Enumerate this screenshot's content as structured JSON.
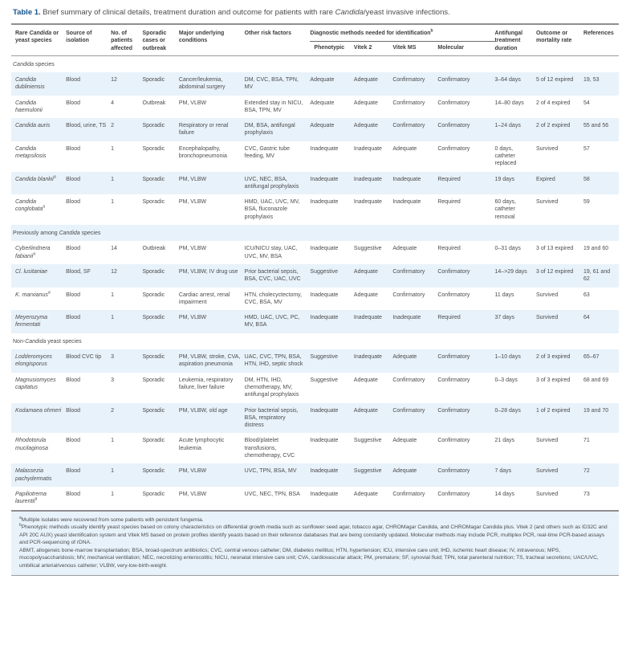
{
  "title": {
    "label": "Table 1.",
    "pre": " Brief summary of clinical details, treatment duration and outcome for patients with rare ",
    "italic": "Candida",
    "post": "/yeast invasive infections."
  },
  "colors": {
    "accent_blue": "#15538c",
    "stripe_blue": "#e8f2fa"
  },
  "table": {
    "head": {
      "species": {
        "pre": "Rare ",
        "italic": "Candida",
        "post": " or yeast species"
      },
      "source": "Source of isolation",
      "n": "No. of patients affected",
      "pattern": "Sporadic cases or outbreak",
      "conditions": "Major underlying conditions",
      "risks": "Other risk factors",
      "diag_group": {
        "text": "Diagnostic methods needed for identification",
        "sup": "b"
      },
      "diag_cols": [
        "Phenotypic",
        "Vitek 2",
        "Vitek MS",
        "Molecular"
      ],
      "duration": "Antifungal treatment duration",
      "outcome": "Outcome or mortality rate",
      "refs": "References"
    },
    "sections": [
      {
        "header": {
          "pre": "",
          "italic": "Candida",
          "post": " species"
        },
        "rows": [
          {
            "species": {
              "name": "Candida dubliniensis",
              "sup": ""
            },
            "source": "Blood",
            "n": "12",
            "pattern": "Sporadic",
            "conditions": "Cancer/leukemia, abdominal surgery",
            "risks": "DM, CVC, BSA, TPN, MV",
            "phenotypic": "Adequate",
            "vitek2": "Adequate",
            "vitekms": "Confirmatory",
            "molecular": "Confirmatory",
            "duration": "3–64 days",
            "outcome": "5 of 12 expired",
            "refs": "19, 53"
          },
          {
            "species": {
              "name": "Candida haemulonii",
              "sup": ""
            },
            "source": "Blood",
            "n": "4",
            "pattern": "Outbreak",
            "conditions": "PM, VLBW",
            "risks": "Extended stay in NICU, BSA, TPN, MV",
            "phenotypic": "Adequate",
            "vitek2": "Adequate",
            "vitekms": "Confirmatory",
            "molecular": "Confirmatory",
            "duration": "14–80 days",
            "outcome": "2 of 4 expired",
            "refs": "54"
          },
          {
            "species": {
              "name": "Candida auris",
              "sup": ""
            },
            "source": "Blood, urine, TS",
            "n": "2",
            "pattern": "Sporadic",
            "conditions": "Respiratory or renal failure",
            "risks": "DM, BSA, antifungal prophylaxis",
            "phenotypic": "Adequate",
            "vitek2": "Adequate",
            "vitekms": "Confirmatory",
            "molecular": "Confirmatory",
            "duration": "1–24 days",
            "outcome": "2 of 2 expired",
            "refs": "55 and 56"
          },
          {
            "species": {
              "name": "Candida metapsilosis",
              "sup": ""
            },
            "source": "Blood",
            "n": "1",
            "pattern": "Sporadic",
            "conditions": "Encephalopathy, bronchopneumonia",
            "risks": "CVC, Gastric tube feeding, MV",
            "phenotypic": "Inadequate",
            "vitek2": "Inadequate",
            "vitekms": "Adequate",
            "molecular": "Confirmatory",
            "duration": "0 days, catheter replaced",
            "outcome": "Survived",
            "refs": "57"
          },
          {
            "species": {
              "name": "Candida blankii",
              "sup": "a"
            },
            "source": "Blood",
            "n": "1",
            "pattern": "Sporadic",
            "conditions": "PM, VLBW",
            "risks": "UVC, NEC, BSA, antifungal prophylaxis",
            "phenotypic": "Inadequate",
            "vitek2": "Inadequate",
            "vitekms": "Inadequate",
            "molecular": "Required",
            "duration": "19 days",
            "outcome": "Expired",
            "refs": "58"
          },
          {
            "species": {
              "name": "Candida conglobata",
              "sup": "a"
            },
            "source": "Blood",
            "n": "1",
            "pattern": "Sporadic",
            "conditions": "PM, VLBW",
            "risks": "HMD, UAC, UVC, MV, BSA, fluconazole prophylaxis",
            "phenotypic": "Inadequate",
            "vitek2": "Inadequate",
            "vitekms": "Inadequate",
            "molecular": "Required",
            "duration": "60 days, catheter removal",
            "outcome": "Survived",
            "refs": "59"
          }
        ]
      },
      {
        "header": {
          "pre": "Previously among ",
          "italic": "Candida",
          "post": " species"
        },
        "rows": [
          {
            "species": {
              "name": "Cyberlindnera fabianii",
              "sup": "a"
            },
            "source": "Blood",
            "n": "14",
            "pattern": "Outbreak",
            "conditions": "PM, VLBW",
            "risks": "ICU/NICU stay, UAC, UVC, MV, BSA",
            "phenotypic": "Inadequate",
            "vitek2": "Suggestive",
            "vitekms": "Adequate",
            "molecular": "Required",
            "duration": "0–31 days",
            "outcome": "3 of 13 expired",
            "refs": "19 and 60"
          },
          {
            "species": {
              "name": "Cl. lusitaniae",
              "sup": ""
            },
            "source": "Blood, SF",
            "n": "12",
            "pattern": "Sporadic",
            "conditions": "PM, VLBW, IV drug use",
            "risks": "Prior bacterial sepsis, BSA, CVC, UAC, UVC",
            "phenotypic": "Suggestive",
            "vitek2": "Adequate",
            "vitekms": "Confirmatory",
            "molecular": "Confirmatory",
            "duration": "14–>29 days",
            "outcome": "3 of 12 expired",
            "refs": "19, 61 and 62"
          },
          {
            "species": {
              "name": "K. marxianus",
              "sup": "a"
            },
            "source": "Blood",
            "n": "1",
            "pattern": "Sporadic",
            "conditions": "Cardiac arrest, renal impairment",
            "risks": "HTN, cholecyctectomy, CVC, BSA, MV",
            "phenotypic": "Inadequate",
            "vitek2": "Adequate",
            "vitekms": "Confirmatory",
            "molecular": "Confirmatory",
            "duration": "11 days",
            "outcome": "Survived",
            "refs": "63"
          },
          {
            "species": {
              "name": "Meyerozyma fermentati",
              "sup": ""
            },
            "source": "Blood",
            "n": "1",
            "pattern": "Sporadic",
            "conditions": "PM, VLBW",
            "risks": "HMD, UAC, UVC, PC, MV, BSA",
            "phenotypic": "Inadequate",
            "vitek2": "Inadequate",
            "vitekms": "Inadequate",
            "molecular": "Required",
            "duration": "37 days",
            "outcome": "Survived",
            "refs": "64"
          }
        ]
      },
      {
        "header": {
          "pre": "Non-",
          "italic": "Candida",
          "post": " yeast species"
        },
        "rows": [
          {
            "species": {
              "name": "Lodderomyces elongisporus",
              "sup": ""
            },
            "source": "Blood CVC tip",
            "n": "3",
            "pattern": "Sporadic",
            "conditions": "PM, VLBW, stroke, CVA, aspiration pneumonia",
            "risks": "UAC, CVC, TPN, BSA, HTN, IHD, septic shock",
            "phenotypic": "Suggestive",
            "vitek2": "Inadequate",
            "vitekms": "Adequate",
            "molecular": "Confirmatory",
            "duration": "1–10 days",
            "outcome": "2 of 3 expired",
            "refs": "65–67"
          },
          {
            "species": {
              "name": "Magnusiomyces capitatus",
              "sup": ""
            },
            "source": "Blood",
            "n": "3",
            "pattern": "Sporadic",
            "conditions": "Leukemia, respiratory failure, liver failure",
            "risks": "DM, HTN, IHD, chemotherapy, MV, antifungal prophylaxis",
            "phenotypic": "Suggestive",
            "vitek2": "Adequate",
            "vitekms": "Confirmatory",
            "molecular": "Confirmatory",
            "duration": "0–3 days",
            "outcome": "3 of 3 expired",
            "refs": "68 and 69"
          },
          {
            "species": {
              "name": "Kodamaea ohmeri",
              "sup": ""
            },
            "source": "Blood",
            "n": "2",
            "pattern": "Sporadic",
            "conditions": "PM, VLBW, old age",
            "risks": "Prior bacterial sepsis, BSA, respiratory distress",
            "phenotypic": "Inadequate",
            "vitek2": "Adequate",
            "vitekms": "Confirmatory",
            "molecular": "Confirmatory",
            "duration": "0–28 days",
            "outcome": "1 of 2 expired",
            "refs": "19 and 70"
          },
          {
            "species": {
              "name": "Rhodotorula mucilaginosa",
              "sup": ""
            },
            "source": "Blood",
            "n": "1",
            "pattern": "Sporadic",
            "conditions": "Acute lymphocytic leukemia",
            "risks": "Blood/platelet transfusions, chemotherapy, CVC",
            "phenotypic": "Inadequate",
            "vitek2": "Suggestive",
            "vitekms": "Adequate",
            "molecular": "Confirmatory",
            "duration": "21 days",
            "outcome": "Survived",
            "refs": "71"
          },
          {
            "species": {
              "name": "Malassezia pachydermatis",
              "sup": ""
            },
            "source": "Blood",
            "n": "1",
            "pattern": "Sporadic",
            "conditions": "PM, VLBW",
            "risks": "UVC, TPN, BSA, MV",
            "phenotypic": "Inadequate",
            "vitek2": "Suggestive",
            "vitekms": "Adequate",
            "molecular": "Confirmatory",
            "duration": "7 days",
            "outcome": "Survived",
            "refs": "72"
          },
          {
            "species": {
              "name": "Papiliotrema laurentii",
              "sup": "a"
            },
            "source": "Blood",
            "n": "1",
            "pattern": "Sporadic",
            "conditions": "PM, VLBW",
            "risks": "UVC, NEC, TPN, BSA",
            "phenotypic": "Inadequate",
            "vitek2": "Adequate",
            "vitekms": "Confirmatory",
            "molecular": "Confirmatory",
            "duration": "14 days",
            "outcome": "Survived",
            "refs": "73"
          }
        ]
      }
    ]
  },
  "footnotes": [
    {
      "sup": "a",
      "text": "Multiple isolates were recovered from some patients with persistent fungemia."
    },
    {
      "sup": "b",
      "text": "Phenotypic methods usually identify yeast species based on colony characteristics on differential growth media such as sunflower seed agar, tobacco agar, CHROMagar Candida, and CHROMagar Candida plus. Vitek 2 (and others such as ID32C and API 20C AUX) yeast identification system and Vitek MS based on protein profiles identify yeasts based on their reference databases that are being constantly updated. Molecular methods may include PCR, multiplex PCR, real-time PCR-based assays and PCR-sequencing of rDNA."
    },
    {
      "sup": "",
      "text": "ABMT, allogeneic bone-marrow transplantation; BSA, broad-spectrum antibiotics; CVC, central venous catheter; DM, diabetes mellitus; HTN, hypertension; ICU, intensive care unit; IHD, ischemic heart disease; IV, intravenous; MPS, mucopolysaccharidosis; MV, mechanical ventilation; NEC, necrotizing enterocolitis; NICU, neonatal intensive care unit; CVA, cardiovascular attack; PM, premature; SF, synovial fluid; TPN, total parenteral nutrition; TS, tracheal secretions; UAC/UVC, umbilical arterial/venous catheter; VLBW, very-low-birth-weight."
    }
  ]
}
